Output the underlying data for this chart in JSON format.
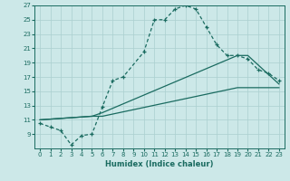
{
  "xlabel": "Humidex (Indice chaleur)",
  "xlim": [
    -0.5,
    23.5
  ],
  "ylim": [
    7,
    27
  ],
  "xticks": [
    0,
    1,
    2,
    3,
    4,
    5,
    6,
    7,
    8,
    9,
    10,
    11,
    12,
    13,
    14,
    15,
    16,
    17,
    18,
    19,
    20,
    21,
    22,
    23
  ],
  "yticks": [
    9,
    11,
    13,
    15,
    17,
    19,
    21,
    23,
    25,
    27
  ],
  "bg_color": "#cce8e8",
  "grid_color": "#aacfcf",
  "line_color": "#1a6b60",
  "line1_x": [
    0,
    1,
    2,
    3,
    4,
    5,
    6,
    7,
    8,
    10,
    11,
    12,
    13,
    14,
    15,
    16,
    17,
    18,
    19,
    20,
    21,
    22,
    23
  ],
  "line1_y": [
    10.5,
    10.0,
    9.5,
    7.5,
    8.8,
    9.0,
    12.8,
    16.5,
    17.0,
    20.5,
    25.0,
    25.0,
    26.5,
    27.0,
    26.5,
    24.0,
    21.5,
    20.0,
    20.0,
    19.5,
    18.0,
    17.5,
    16.5
  ],
  "line2_x": [
    0,
    5,
    6,
    19,
    20,
    23
  ],
  "line2_y": [
    11.0,
    11.5,
    12.0,
    20.0,
    20.0,
    16.0
  ],
  "line3_x": [
    0,
    5,
    6,
    19,
    20,
    23
  ],
  "line3_y": [
    11.0,
    11.5,
    11.5,
    15.5,
    15.5,
    15.5
  ]
}
